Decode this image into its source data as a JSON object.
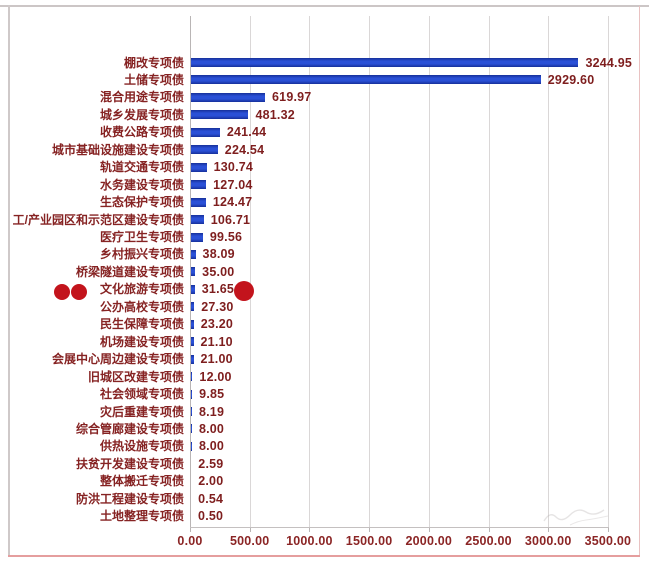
{
  "chart_data": {
    "type": "bar",
    "orientation": "horizontal",
    "title": "",
    "xlabel": "",
    "ylabel": "",
    "xlim": [
      0,
      3500
    ],
    "grid": true,
    "legend": "none",
    "bar_color": "#1e42c0",
    "label_color": "#862323",
    "categories": [
      "棚改专项债",
      "土储专项债",
      "混合用途专项债",
      "城乡发展专项债",
      "收费公路专项债",
      "城市基础设施建设专项债",
      "轨道交通专项债",
      "水务建设专项债",
      "生态保护专项债",
      "工/产业园区和示范区建设专项债",
      "医疗卫生专项债",
      "乡村振兴专项债",
      "桥梁隧道建设专项债",
      "文化旅游专项债",
      "公办高校专项债",
      "民生保障专项债",
      "机场建设专项债",
      "会展中心周边建设专项债",
      "旧城区改建专项债",
      "社会领域专项债",
      "灾后重建专项债",
      "综合管廊建设专项债",
      "供热设施专项债",
      "扶贫开发建设专项债",
      "整体搬迁专项债",
      "防洪工程建设专项债",
      "土地整理专项债"
    ],
    "values": [
      3244.95,
      2929.6,
      619.97,
      481.32,
      241.44,
      224.54,
      130.74,
      127.04,
      124.47,
      106.71,
      99.56,
      38.09,
      35.0,
      31.65,
      27.3,
      23.2,
      21.1,
      21.0,
      12.0,
      9.85,
      8.19,
      8.0,
      8.0,
      2.59,
      2.0,
      0.54,
      0.5
    ],
    "value_labels": [
      "3244.95",
      "2929.60",
      "619.97",
      "481.32",
      "241.44",
      "224.54",
      "130.74",
      "127.04",
      "124.47",
      "106.71",
      "99.56",
      "38.09",
      "35.00",
      "31.65",
      "27.30",
      "23.20",
      "21.10",
      "21.00",
      "12.00",
      "9.85",
      "8.19",
      "8.00",
      "8.00",
      "2.59",
      "2.00",
      "0.54",
      "0.50"
    ],
    "x_tick_values": [
      0,
      500,
      1000,
      1500,
      2000,
      2500,
      3000,
      3500
    ],
    "x_tick_labels": [
      "0.00",
      "500.00",
      "1000.00",
      "1500.00",
      "2000.00",
      "2500.00",
      "3000.00",
      "3500.00"
    ],
    "annotations": {
      "highlighted_category": "文化旅游专项债",
      "highlighted_value": "31.65",
      "circle_color": "#c3141c",
      "circles_left_of_label": 2,
      "circles_right_of_value": 1
    }
  }
}
